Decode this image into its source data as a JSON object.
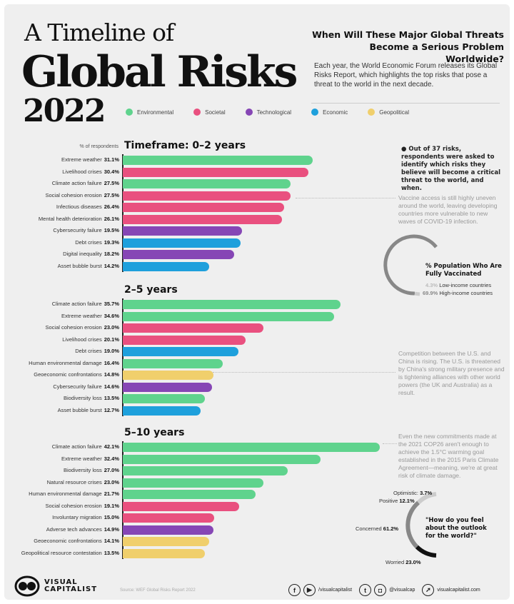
{
  "header": {
    "title_line1": "A Timeline of",
    "title_line2": "Global Risks",
    "title_line3": "2022",
    "question": "When Will These Major Global Threats Become a Serious Problem Worldwide?",
    "intro": "Each year, the World Economic Forum releases its Global Risks Report, which highlights the top risks that pose a threat to the world in the next decade."
  },
  "legend": [
    {
      "label": "Environmental",
      "color": "#5fd38d"
    },
    {
      "label": "Societal",
      "color": "#e9507f"
    },
    {
      "label": "Technological",
      "color": "#8646b5"
    },
    {
      "label": "Economic",
      "color": "#1ea0dc"
    },
    {
      "label": "Geopolitical",
      "color": "#f0cf6c"
    }
  ],
  "respondents_label": "% of respondents",
  "info_note": "Out of 37 risks, respondents were asked to identify which risks they believe will become a critical threat to the world, and when.",
  "chart_data": [
    {
      "type": "bar",
      "orientation": "horizontal",
      "title": "Timeframe: 0–2 years",
      "unit": "%",
      "categories": [
        "Extreme weather",
        "Livelihood crises",
        "Climate action failure",
        "Social cohesion erosion",
        "Infectious diseases",
        "Mental health deterioration",
        "Cybersecurity failure",
        "Debt crises",
        "Digital inequality",
        "Asset bubble burst"
      ],
      "values": [
        31.1,
        30.4,
        27.5,
        27.5,
        26.4,
        26.1,
        19.5,
        19.3,
        18.2,
        14.2
      ],
      "groups": [
        "Environmental",
        "Societal",
        "Environmental",
        "Societal",
        "Societal",
        "Societal",
        "Technological",
        "Economic",
        "Technological",
        "Economic"
      ]
    },
    {
      "type": "bar",
      "orientation": "horizontal",
      "title": "2–5 years",
      "unit": "%",
      "categories": [
        "Climate action failure",
        "Extreme weather",
        "Social cohesion erosion",
        "Livelihood crises",
        "Debt crises",
        "Human environmental damage",
        "Geoeconomic confrontations",
        "Cybersecurity failure",
        "Biodiversity loss",
        "Asset bubble burst"
      ],
      "values": [
        35.7,
        34.6,
        23.0,
        20.1,
        19.0,
        16.4,
        14.8,
        14.6,
        13.5,
        12.7
      ],
      "groups": [
        "Environmental",
        "Environmental",
        "Societal",
        "Societal",
        "Economic",
        "Environmental",
        "Geopolitical",
        "Technological",
        "Environmental",
        "Economic"
      ]
    },
    {
      "type": "bar",
      "orientation": "horizontal",
      "title": "5–10 years",
      "unit": "%",
      "categories": [
        "Climate action failure",
        "Extreme weather",
        "Biodiversity loss",
        "Natural resource crises",
        "Human environmental damage",
        "Social cohesion erosion",
        "Involuntary migration",
        "Adverse tech advances",
        "Geoeconomic confrontations",
        "Geopolitical resource contestation"
      ],
      "values": [
        42.1,
        32.4,
        27.0,
        23.0,
        21.7,
        19.1,
        15.0,
        14.9,
        14.1,
        13.5
      ],
      "groups": [
        "Environmental",
        "Environmental",
        "Environmental",
        "Environmental",
        "Environmental",
        "Societal",
        "Societal",
        "Technological",
        "Geopolitical",
        "Geopolitical"
      ]
    },
    {
      "type": "pie",
      "title": "% Population Who Are Fully Vaccinated",
      "categories": [
        "Low-income countries",
        "High-income countries"
      ],
      "values": [
        4.3,
        69.9
      ],
      "labels": [
        "4.3%",
        "69.9%"
      ]
    },
    {
      "type": "pie",
      "title": "\"How do you feel about the outlook for the world?\"",
      "categories": [
        "Optimistic",
        "Positive",
        "Concerned",
        "Worried"
      ],
      "values": [
        3.7,
        12.1,
        61.2,
        23.0
      ],
      "labels": [
        "3.7%",
        "12.1%",
        "61.2%",
        "23.0%"
      ]
    }
  ],
  "notes": [
    "Vaccine access is still highly uneven around the world, leaving developing countries more vulnerable to new waves of COVID-19 infection.",
    "Competition between the U.S. and China is rising. The U.S. is threatened by China's strong military presence and is tightening alliances with other world powers (the UK and Australia) as a result.",
    "Even the new commitments made at the 2021 COP26 aren't enough to achieve the 1.5°C warming goal established in the 2015 Paris Climate Agreement—meaning, we're at great risk of climate damage."
  ],
  "footer": {
    "brand": "VISUAL CAPITALIST",
    "source": "Source: WEF Global Risks Report 2022",
    "handle1": "/visualcapitalist",
    "handle2": "@visualcap",
    "website": "visualcapitalist.com"
  }
}
